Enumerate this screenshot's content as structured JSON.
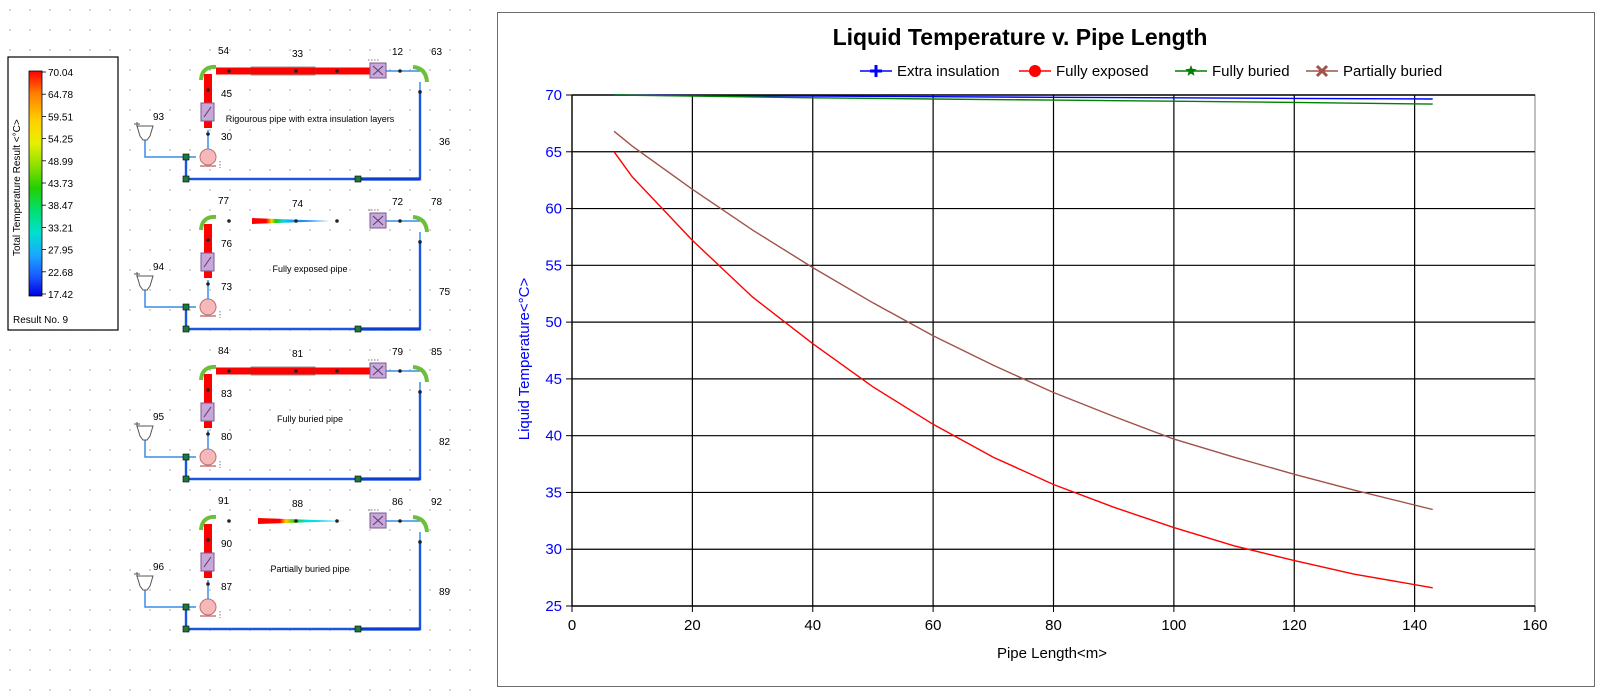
{
  "legend": {
    "title": "Total Temperature Result <°C>",
    "values": [
      "70.04",
      "64.78",
      "59.51",
      "54.25",
      "48.99",
      "43.73",
      "38.47",
      "33.21",
      "27.95",
      "22.68",
      "17.42"
    ],
    "colors": [
      "#ff0000",
      "#ff7f00",
      "#ffd000",
      "#e8f000",
      "#8ee000",
      "#22d000",
      "#00e070",
      "#00e0d0",
      "#1aa6ff",
      "#1a5cff",
      "#0000e0"
    ],
    "result": "Result No. 9"
  },
  "networks": [
    {
      "source_id": "93",
      "pump_id": "30",
      "bend_top_id": "54",
      "pipe_id": "33",
      "hx_id": "12",
      "bend_right_id": "63",
      "riser_id": "45",
      "return_id": "36",
      "note": "Rigourous pipe with extra insulation layers",
      "gradient": "extra"
    },
    {
      "source_id": "94",
      "pump_id": "73",
      "bend_top_id": "77",
      "pipe_id": "74",
      "hx_id": "72",
      "bend_right_id": "78",
      "riser_id": "76",
      "return_id": "75",
      "note": "Fully exposed pipe",
      "gradient": "exposed"
    },
    {
      "source_id": "95",
      "pump_id": "80",
      "bend_top_id": "84",
      "pipe_id": "81",
      "hx_id": "79",
      "bend_right_id": "85",
      "riser_id": "83",
      "return_id": "82",
      "note": "Fully buried pipe",
      "gradient": "buried"
    },
    {
      "source_id": "96",
      "pump_id": "87",
      "bend_top_id": "91",
      "pipe_id": "88",
      "hx_id": "86",
      "bend_right_id": "92",
      "riser_id": "90",
      "return_id": "89",
      "note": "Partially buried pipe",
      "gradient": "partial"
    }
  ],
  "chart_data": {
    "type": "line",
    "title": "Liquid Temperature v. Pipe Length",
    "xlabel": "Pipe Length<m>",
    "ylabel": "Liquid Temperature<°C>",
    "xlim": [
      0,
      160
    ],
    "ylim": [
      25,
      70
    ],
    "xticks": [
      0,
      20,
      40,
      60,
      80,
      100,
      120,
      140,
      160
    ],
    "yticks": [
      25,
      30,
      35,
      40,
      45,
      50,
      55,
      60,
      65,
      70
    ],
    "grid": true,
    "legend_position": "top",
    "series": [
      {
        "name": "Extra insulation",
        "color": "#0000ff",
        "marker": "plus",
        "x": [
          7,
          20,
          40,
          60,
          80,
          100,
          120,
          143
        ],
        "y": [
          70.0,
          69.95,
          69.9,
          69.85,
          69.8,
          69.75,
          69.7,
          69.65
        ]
      },
      {
        "name": "Fully exposed",
        "color": "#ff0000",
        "marker": "circle",
        "x": [
          7,
          10,
          20,
          30,
          40,
          50,
          60,
          70,
          80,
          90,
          100,
          110,
          120,
          130,
          143
        ],
        "y": [
          65.0,
          62.8,
          57.2,
          52.2,
          48.1,
          44.3,
          41.0,
          38.1,
          35.7,
          33.7,
          31.9,
          30.3,
          29.0,
          27.8,
          26.6
        ]
      },
      {
        "name": "Fully buried",
        "color": "#008000",
        "marker": "star",
        "x": [
          7,
          20,
          40,
          60,
          80,
          100,
          120,
          143
        ],
        "y": [
          70.0,
          69.9,
          69.75,
          69.65,
          69.55,
          69.45,
          69.35,
          69.2
        ]
      },
      {
        "name": "Partially buried",
        "color": "#a0524b",
        "marker": "x",
        "x": [
          7,
          10,
          20,
          30,
          40,
          50,
          60,
          70,
          80,
          90,
          100,
          110,
          120,
          130,
          143
        ],
        "y": [
          66.8,
          65.5,
          61.7,
          58.1,
          54.8,
          51.7,
          48.8,
          46.2,
          43.8,
          41.7,
          39.7,
          38.1,
          36.6,
          35.2,
          33.5
        ]
      }
    ]
  }
}
